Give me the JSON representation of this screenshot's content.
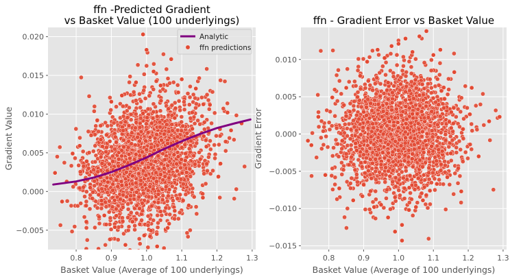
{
  "chart_data": [
    {
      "type": "scatter",
      "title": "ffn -Predicted Gradient\nvs Basket Value (100 underlyings)",
      "xlabel": "Basket Value (Average of 100 underlyings)",
      "ylabel": "Gradient Value",
      "xlim": [
        0.72,
        1.31
      ],
      "ylim": [
        -0.0075,
        0.0212
      ],
      "xticks": [
        0.8,
        0.9,
        1.0,
        1.1,
        1.2,
        1.3
      ],
      "xtick_labels": [
        "0.8",
        "0.9",
        "1.0",
        "1.1",
        "1.2",
        "1.3"
      ],
      "yticks": [
        -0.005,
        0.0,
        0.005,
        0.01,
        0.015,
        0.02
      ],
      "ytick_labels": [
        "−0.005",
        "0.000",
        "0.005",
        "0.010",
        "0.015",
        "0.020"
      ],
      "grid": true,
      "legend_position": "top-right",
      "series": [
        {
          "name": "Analytic",
          "kind": "line",
          "color": "#800080",
          "x": [
            0.735,
            0.8,
            0.85,
            0.9,
            0.95,
            1.0,
            1.05,
            1.1,
            1.15,
            1.2,
            1.25,
            1.295
          ],
          "y": [
            0.0009,
            0.0013,
            0.0018,
            0.0025,
            0.0034,
            0.0044,
            0.0055,
            0.0065,
            0.0074,
            0.0082,
            0.0088,
            0.0093
          ]
        },
        {
          "name": "ffn predictions",
          "kind": "scatter",
          "color": "#e24a33",
          "x": [
            0.74,
            0.76,
            0.79,
            0.81,
            0.84,
            0.86,
            0.88,
            0.9,
            0.91,
            0.93,
            0.94,
            0.95,
            0.96,
            0.97,
            0.98,
            0.99,
            1.0,
            1.01,
            1.02,
            1.03,
            1.04,
            1.05,
            1.06,
            1.07,
            1.08,
            1.09,
            1.1,
            1.12,
            1.14,
            1.16,
            1.18,
            1.21,
            1.24,
            1.27,
            0.87,
            0.92,
            0.99,
            1.0,
            1.02,
            1.03,
            1.06,
            1.09,
            0.96,
            1.01,
            1.05,
            0.89,
            0.83,
            1.13,
            1.17,
            1.23,
            0.95,
            1.04,
            0.98,
            1.08,
            0.93,
            1.11
          ],
          "y": [
            0.0024,
            -0.0013,
            0.0049,
            0.0059,
            0.0005,
            0.0092,
            -0.0031,
            0.0116,
            -0.0046,
            0.0124,
            -0.0069,
            0.0085,
            -0.0039,
            0.0141,
            -0.0022,
            0.0101,
            0.0183,
            -0.0058,
            0.0155,
            -0.0071,
            0.0137,
            0.0074,
            -0.0047,
            0.0171,
            -0.0025,
            0.0128,
            0.0145,
            -0.0018,
            0.0133,
            -0.0008,
            0.0112,
            0.0036,
            0.0079,
            0.0088,
            0.0067,
            0.0033,
            0.0203,
            0.0054,
            0.0017,
            0.0097,
            0.0062,
            0.0045,
            0.002,
            0.007,
            0.003,
            0.0012,
            0.0039,
            0.0081,
            0.0058,
            0.0102,
            0.0048,
            0.0022,
            0.0065,
            0.0095,
            0.0008,
            0.004
          ]
        }
      ]
    },
    {
      "type": "scatter",
      "title": "ffn - Gradient Error vs Basket Value",
      "xlabel": "Basket Value (Average of 100 underlyings)",
      "ylabel": "Gradient Error",
      "xlim": [
        0.72,
        1.31
      ],
      "ylim": [
        -0.0155,
        0.0143
      ],
      "xticks": [
        0.8,
        0.9,
        1.0,
        1.1,
        1.2,
        1.3
      ],
      "xtick_labels": [
        "0.8",
        "0.9",
        "1.0",
        "1.1",
        "1.2",
        "1.3"
      ],
      "yticks": [
        -0.015,
        -0.01,
        -0.005,
        0.0,
        0.005,
        0.01
      ],
      "ytick_labels": [
        "−0.015",
        "−0.010",
        "−0.005",
        "0.000",
        "0.005",
        "0.010"
      ],
      "grid": true,
      "series": [
        {
          "kind": "scatter",
          "color": "#e24a33",
          "x": [
            0.74,
            0.75,
            0.77,
            0.79,
            0.81,
            0.83,
            0.85,
            0.87,
            0.89,
            0.9,
            0.91,
            0.93,
            0.94,
            0.95,
            0.96,
            0.97,
            0.98,
            0.99,
            1.0,
            1.01,
            1.02,
            1.03,
            1.04,
            1.05,
            1.06,
            1.07,
            1.08,
            1.09,
            1.1,
            1.11,
            1.12,
            1.14,
            1.16,
            1.18,
            1.21,
            1.23,
            1.26,
            1.29,
            0.92,
            0.96,
            1.0,
            1.04,
            1.08,
            0.88,
            1.13,
            0.99,
            1.01,
            1.06,
            0.95,
            1.02,
            0.97,
            1.09,
            0.86,
            1.15
          ],
          "y": [
            -0.0009,
            -0.0015,
            0.0023,
            -0.0055,
            0.0049,
            -0.0073,
            0.0062,
            -0.0089,
            0.0078,
            -0.0068,
            0.0097,
            -0.0098,
            0.0113,
            -0.0095,
            0.0102,
            -0.0112,
            0.0118,
            -0.0085,
            0.0121,
            -0.0143,
            0.0128,
            -0.0102,
            0.011,
            -0.0098,
            0.0131,
            -0.0089,
            0.0138,
            -0.0076,
            0.0106,
            -0.0067,
            0.0113,
            -0.0058,
            0.0083,
            -0.0077,
            0.0062,
            -0.003,
            0.0017,
            0.0023,
            0.0041,
            -0.0032,
            0.0008,
            0.0027,
            -0.0015,
            -0.0022,
            0.0035,
            -0.0131,
            -0.0122,
            0.0052,
            -0.0041,
            -0.0005,
            0.0069,
            0.0011,
            0.003,
            -0.0026
          ]
        }
      ]
    }
  ]
}
